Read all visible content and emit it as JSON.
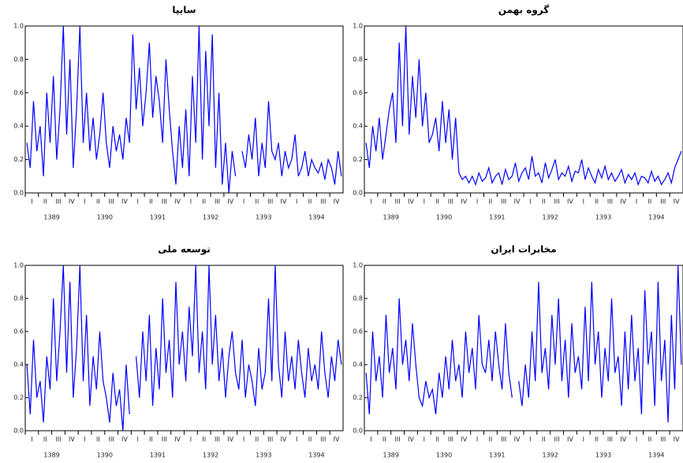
{
  "chart_data": [
    {
      "type": "line",
      "title": "سایپا",
      "color": "#0000ff",
      "ylim": [
        0,
        1
      ],
      "yticks": [
        {
          "value": 0,
          "label": "0.0"
        },
        0.2,
        0.4,
        0.6,
        0.8,
        {
          "value": 1,
          "label": "1.0"
        }
      ],
      "xlim": [
        0,
        24
      ],
      "xticks": [
        {
          "value": 0.5,
          "label": "I"
        },
        {
          "value": 1.5,
          "label": "II"
        },
        {
          "value": 2.5,
          "label": "III"
        },
        {
          "value": 3.5,
          "label": "IV"
        },
        {
          "value": 4.5,
          "label": "I"
        },
        {
          "value": 5.5,
          "label": "II"
        },
        {
          "value": 6.5,
          "label": "III"
        },
        {
          "value": 7.5,
          "label": "IV"
        },
        {
          "value": 8.5,
          "label": "I"
        },
        {
          "value": 9.5,
          "label": "II"
        },
        {
          "value": 10.5,
          "label": "III"
        },
        {
          "value": 11.5,
          "label": "IV"
        },
        {
          "value": 12.5,
          "label": "I"
        },
        {
          "value": 13.5,
          "label": "II"
        },
        {
          "value": 14.5,
          "label": "III"
        },
        {
          "value": 15.5,
          "label": "IV"
        },
        {
          "value": 16.5,
          "label": "I"
        },
        {
          "value": 17.5,
          "label": "II"
        },
        {
          "value": 18.5,
          "label": "III"
        },
        {
          "value": 19.5,
          "label": "IV"
        },
        {
          "value": 20.5,
          "label": "I"
        },
        {
          "value": 21.5,
          "label": "II"
        },
        {
          "value": 22.5,
          "label": "III"
        },
        {
          "value": 23.5,
          "label": "IV"
        }
      ],
      "year_labels": [
        {
          "value": 2,
          "label": "1389"
        },
        {
          "value": 6,
          "label": "1390"
        },
        {
          "value": 10,
          "label": "1391"
        },
        {
          "value": 14,
          "label": "1392"
        },
        {
          "value": 18,
          "label": "1393"
        },
        {
          "value": 22,
          "label": "1394"
        }
      ],
      "values": [
        0.3,
        0.15,
        0.55,
        0.25,
        0.4,
        0.1,
        0.6,
        0.3,
        0.7,
        0.2,
        0.5,
        1.0,
        0.35,
        0.8,
        0.15,
        0.5,
        1.0,
        0.3,
        0.6,
        0.25,
        0.45,
        0.2,
        0.35,
        0.6,
        0.3,
        0.15,
        0.4,
        0.25,
        0.35,
        0.2,
        0.45,
        0.3,
        0.95,
        0.5,
        0.75,
        0.4,
        0.6,
        0.9,
        0.45,
        0.7,
        0.55,
        0.3,
        0.8,
        0.5,
        0.25,
        0.05,
        0.4,
        0.15,
        0.5,
        0.1,
        0.7,
        0.3,
        1.0,
        0.2,
        0.85,
        0.4,
        0.95,
        0.15,
        0.6,
        0.05,
        0.3,
        0.0,
        0.25,
        0.1,
        null,
        0.25,
        0.15,
        0.35,
        0.2,
        0.45,
        0.1,
        0.3,
        0.15,
        0.55,
        0.25,
        0.2,
        0.3,
        0.1,
        0.25,
        0.15,
        0.2,
        0.35,
        0.1,
        0.15,
        0.25,
        0.1,
        0.2,
        0.15,
        0.12,
        0.18,
        0.08,
        0.2,
        0.15,
        0.05,
        0.25,
        0.1
      ]
    },
    {
      "type": "line",
      "title": "گروه بهمن",
      "color": "#0000ff",
      "ylim": [
        0,
        1
      ],
      "yticks": [
        {
          "value": 0,
          "label": "0.0"
        },
        0.2,
        0.4,
        0.6,
        0.8,
        {
          "value": 1,
          "label": "1.0"
        }
      ],
      "xlim": [
        0,
        24
      ],
      "xticks": [
        {
          "value": 0.5,
          "label": "I"
        },
        {
          "value": 1.5,
          "label": "II"
        },
        {
          "value": 2.5,
          "label": "III"
        },
        {
          "value": 3.5,
          "label": "IV"
        },
        {
          "value": 4.5,
          "label": "I"
        },
        {
          "value": 5.5,
          "label": "II"
        },
        {
          "value": 6.5,
          "label": "III"
        },
        {
          "value": 7.5,
          "label": "IV"
        },
        {
          "value": 8.5,
          "label": "I"
        },
        {
          "value": 9.5,
          "label": "II"
        },
        {
          "value": 10.5,
          "label": "III"
        },
        {
          "value": 11.5,
          "label": "IV"
        },
        {
          "value": 12.5,
          "label": "I"
        },
        {
          "value": 13.5,
          "label": "II"
        },
        {
          "value": 14.5,
          "label": "III"
        },
        {
          "value": 15.5,
          "label": "IV"
        },
        {
          "value": 16.5,
          "label": "I"
        },
        {
          "value": 17.5,
          "label": "II"
        },
        {
          "value": 18.5,
          "label": "III"
        },
        {
          "value": 19.5,
          "label": "IV"
        },
        {
          "value": 20.5,
          "label": "I"
        },
        {
          "value": 21.5,
          "label": "II"
        },
        {
          "value": 22.5,
          "label": "III"
        },
        {
          "value": 23.5,
          "label": "IV"
        }
      ],
      "year_labels": [
        {
          "value": 2,
          "label": "1389"
        },
        {
          "value": 6,
          "label": "1390"
        },
        {
          "value": 10,
          "label": "1391"
        },
        {
          "value": 14,
          "label": "1392"
        },
        {
          "value": 18,
          "label": "1393"
        },
        {
          "value": 22,
          "label": "1394"
        }
      ],
      "values": [
        0.3,
        0.15,
        0.4,
        0.25,
        0.45,
        0.2,
        0.35,
        0.5,
        0.6,
        0.3,
        0.9,
        0.4,
        1.0,
        0.35,
        0.7,
        0.45,
        0.8,
        0.4,
        0.6,
        0.3,
        0.35,
        0.45,
        0.25,
        0.55,
        0.3,
        0.5,
        0.2,
        0.45,
        0.12,
        0.08,
        0.1,
        0.06,
        0.1,
        0.05,
        0.12,
        0.07,
        0.09,
        0.15,
        0.06,
        0.1,
        0.12,
        0.05,
        0.14,
        0.08,
        0.1,
        0.18,
        0.07,
        0.12,
        0.15,
        0.08,
        0.22,
        0.1,
        0.12,
        0.06,
        0.18,
        0.09,
        0.14,
        0.2,
        0.08,
        0.12,
        0.1,
        0.16,
        0.07,
        0.13,
        0.12,
        0.2,
        0.08,
        0.15,
        0.1,
        0.06,
        0.14,
        0.09,
        0.16,
        0.08,
        0.12,
        0.07,
        0.1,
        0.14,
        0.06,
        0.11,
        0.08,
        0.12,
        0.05,
        0.1,
        0.09,
        0.06,
        0.13,
        0.07,
        0.1,
        0.05,
        0.08,
        0.12,
        0.06,
        0.15,
        0.2,
        0.25
      ]
    },
    {
      "type": "line",
      "title": "توسعه ملی",
      "color": "#0000ff",
      "ylim": [
        0,
        1
      ],
      "yticks": [
        {
          "value": 0,
          "label": "0.0"
        },
        0.2,
        0.4,
        0.6,
        0.8,
        {
          "value": 1,
          "label": "1.0"
        }
      ],
      "xlim": [
        0,
        24
      ],
      "xticks": [
        {
          "value": 0.5,
          "label": "I"
        },
        {
          "value": 1.5,
          "label": "II"
        },
        {
          "value": 2.5,
          "label": "III"
        },
        {
          "value": 3.5,
          "label": "IV"
        },
        {
          "value": 4.5,
          "label": "I"
        },
        {
          "value": 5.5,
          "label": "II"
        },
        {
          "value": 6.5,
          "label": "III"
        },
        {
          "value": 7.5,
          "label": "IV"
        },
        {
          "value": 8.5,
          "label": "I"
        },
        {
          "value": 9.5,
          "label": "II"
        },
        {
          "value": 10.5,
          "label": "III"
        },
        {
          "value": 11.5,
          "label": "IV"
        },
        {
          "value": 12.5,
          "label": "I"
        },
        {
          "value": 13.5,
          "label": "II"
        },
        {
          "value": 14.5,
          "label": "III"
        },
        {
          "value": 15.5,
          "label": "IV"
        },
        {
          "value": 16.5,
          "label": "I"
        },
        {
          "value": 17.5,
          "label": "II"
        },
        {
          "value": 18.5,
          "label": "III"
        },
        {
          "value": 19.5,
          "label": "IV"
        },
        {
          "value": 20.5,
          "label": "I"
        },
        {
          "value": 21.5,
          "label": "II"
        },
        {
          "value": 22.5,
          "label": "III"
        },
        {
          "value": 23.5,
          "label": "IV"
        }
      ],
      "year_labels": [
        {
          "value": 2,
          "label": "1389"
        },
        {
          "value": 6,
          "label": "1390"
        },
        {
          "value": 10,
          "label": "1391"
        },
        {
          "value": 14,
          "label": "1392"
        },
        {
          "value": 18,
          "label": "1393"
        },
        {
          "value": 22,
          "label": "1394"
        }
      ],
      "values": [
        0.4,
        0.1,
        0.55,
        0.2,
        0.3,
        0.05,
        0.45,
        0.25,
        0.8,
        0.3,
        0.6,
        1.0,
        0.35,
        0.9,
        0.2,
        0.5,
        1.0,
        0.3,
        0.7,
        0.15,
        0.45,
        0.25,
        0.6,
        0.3,
        0.2,
        0.05,
        0.35,
        0.15,
        0.25,
        0.0,
        0.4,
        0.1,
        null,
        0.45,
        0.2,
        0.6,
        0.3,
        0.7,
        0.15,
        0.5,
        0.25,
        0.8,
        0.35,
        0.55,
        0.2,
        0.9,
        0.4,
        0.6,
        0.3,
        0.75,
        0.45,
        1.0,
        0.35,
        0.6,
        0.25,
        1.0,
        0.4,
        0.7,
        0.3,
        0.5,
        0.2,
        0.45,
        0.6,
        0.35,
        0.25,
        0.55,
        0.2,
        0.4,
        0.3,
        0.15,
        0.5,
        0.25,
        0.35,
        0.8,
        0.3,
        1.0,
        0.4,
        0.2,
        0.6,
        0.3,
        0.45,
        0.25,
        0.55,
        0.35,
        0.2,
        0.5,
        0.3,
        0.4,
        0.25,
        0.6,
        0.35,
        0.2,
        0.45,
        0.3,
        0.55,
        0.4
      ]
    },
    {
      "type": "line",
      "title": "مخابرات ایران",
      "color": "#0000ff",
      "ylim": [
        0,
        1
      ],
      "yticks": [
        {
          "value": 0,
          "label": "0.0"
        },
        0.2,
        0.4,
        0.6,
        0.8,
        {
          "value": 1,
          "label": "1.0"
        }
      ],
      "xlim": [
        0,
        24
      ],
      "xticks": [
        {
          "value": 0.5,
          "label": "I"
        },
        {
          "value": 1.5,
          "label": "II"
        },
        {
          "value": 2.5,
          "label": "III"
        },
        {
          "value": 3.5,
          "label": "IV"
        },
        {
          "value": 4.5,
          "label": "I"
        },
        {
          "value": 5.5,
          "label": "II"
        },
        {
          "value": 6.5,
          "label": "III"
        },
        {
          "value": 7.5,
          "label": "IV"
        },
        {
          "value": 8.5,
          "label": "I"
        },
        {
          "value": 9.5,
          "label": "II"
        },
        {
          "value": 10.5,
          "label": "III"
        },
        {
          "value": 11.5,
          "label": "IV"
        },
        {
          "value": 12.5,
          "label": "I"
        },
        {
          "value": 13.5,
          "label": "II"
        },
        {
          "value": 14.5,
          "label": "III"
        },
        {
          "value": 15.5,
          "label": "IV"
        },
        {
          "value": 16.5,
          "label": "I"
        },
        {
          "value": 17.5,
          "label": "II"
        },
        {
          "value": 18.5,
          "label": "III"
        },
        {
          "value": 19.5,
          "label": "IV"
        },
        {
          "value": 20.5,
          "label": "I"
        },
        {
          "value": 21.5,
          "label": "II"
        },
        {
          "value": 22.5,
          "label": "III"
        },
        {
          "value": 23.5,
          "label": "IV"
        }
      ],
      "year_labels": [
        {
          "value": 2,
          "label": "1389"
        },
        {
          "value": 6,
          "label": "1390"
        },
        {
          "value": 10,
          "label": "1391"
        },
        {
          "value": 14,
          "label": "1392"
        },
        {
          "value": 18,
          "label": "1393"
        },
        {
          "value": 22,
          "label": "1394"
        }
      ],
      "values": [
        0.35,
        0.1,
        0.6,
        0.3,
        0.45,
        0.2,
        0.7,
        0.35,
        0.5,
        0.25,
        0.8,
        0.4,
        0.55,
        0.3,
        0.65,
        0.4,
        0.2,
        0.15,
        0.3,
        0.2,
        0.25,
        0.1,
        0.35,
        0.2,
        0.45,
        0.25,
        0.55,
        0.3,
        0.4,
        0.2,
        0.6,
        0.35,
        0.5,
        0.25,
        0.7,
        0.4,
        0.35,
        0.55,
        0.3,
        0.6,
        0.4,
        0.25,
        0.65,
        0.35,
        0.2,
        null,
        0.3,
        0.15,
        0.4,
        0.2,
        0.6,
        0.3,
        0.9,
        0.35,
        0.5,
        0.25,
        0.7,
        0.4,
        0.8,
        0.3,
        0.55,
        0.2,
        0.65,
        0.35,
        0.45,
        0.25,
        0.75,
        0.3,
        0.9,
        0.4,
        0.6,
        0.2,
        0.5,
        0.3,
        0.8,
        0.35,
        0.45,
        0.15,
        0.6,
        0.25,
        0.7,
        0.3,
        0.5,
        0.1,
        0.85,
        0.4,
        0.6,
        0.15,
        0.9,
        0.3,
        0.55,
        0.05,
        0.7,
        0.25,
        1.0,
        0.4
      ]
    }
  ]
}
